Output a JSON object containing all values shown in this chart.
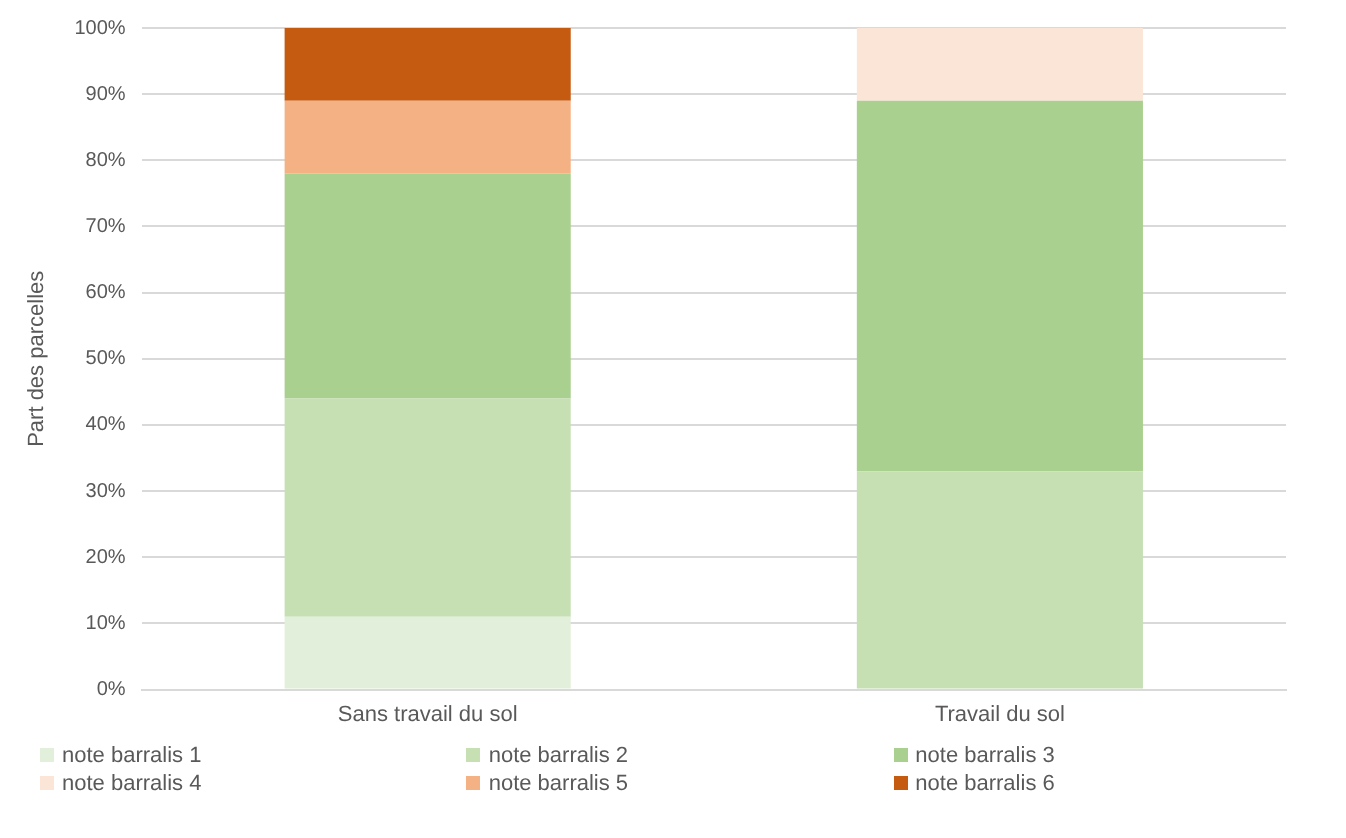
{
  "chart_data": {
    "type": "bar",
    "stacked": true,
    "ylabel": "Part des parcelles",
    "categories": [
      "Sans travail du sol",
      "Travail du sol"
    ],
    "series": [
      {
        "name": "note barralis 1",
        "color": "#e2efda",
        "values": [
          11,
          0
        ]
      },
      {
        "name": "note barralis 2",
        "color": "#c6e0b4",
        "values": [
          33,
          33
        ]
      },
      {
        "name": "note barralis 3",
        "color": "#a9d08e",
        "values": [
          34,
          56
        ]
      },
      {
        "name": "note barralis 4",
        "color": "#fbe5d6",
        "values": [
          0,
          11
        ]
      },
      {
        "name": "note barralis 5",
        "color": "#f4b183",
        "values": [
          11,
          0
        ]
      },
      {
        "name": "note barralis 6",
        "color": "#c55a11",
        "values": [
          11,
          0
        ]
      }
    ],
    "ylim": [
      0,
      100
    ],
    "yticks": [
      {
        "value": 0,
        "label": "0%"
      },
      {
        "value": 10,
        "label": "10%"
      },
      {
        "value": 20,
        "label": "20%"
      },
      {
        "value": 30,
        "label": "30%"
      },
      {
        "value": 40,
        "label": "40%"
      },
      {
        "value": 50,
        "label": "50%"
      },
      {
        "value": 60,
        "label": "60%"
      },
      {
        "value": 70,
        "label": "70%"
      },
      {
        "value": 80,
        "label": "80%"
      },
      {
        "value": 90,
        "label": "90%"
      },
      {
        "value": 100,
        "label": "100%"
      }
    ],
    "grid": "y",
    "legend": "bottom"
  }
}
